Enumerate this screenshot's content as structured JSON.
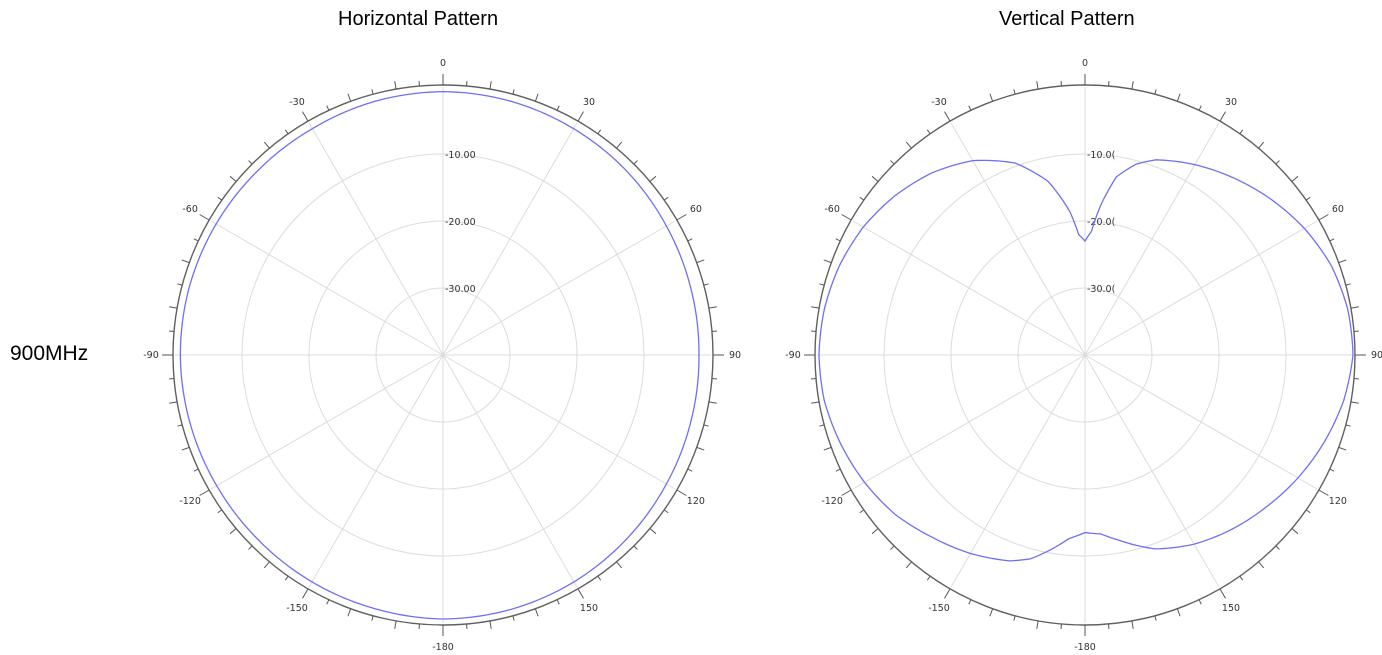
{
  "frequency_label": "900MHz",
  "chart_data": [
    {
      "type": "polar-line",
      "title": "Horizontal Pattern",
      "angle_ticks": [
        {
          "angle": 0,
          "label": "0"
        },
        {
          "angle": 30,
          "label": "30"
        },
        {
          "angle": 60,
          "label": "60"
        },
        {
          "angle": 90,
          "label": "90"
        },
        {
          "angle": 120,
          "label": "120"
        },
        {
          "angle": 150,
          "label": "150"
        },
        {
          "angle": 180,
          "label": "-180"
        },
        {
          "angle": -150,
          "label": "-150"
        },
        {
          "angle": -120,
          "label": "-120"
        },
        {
          "angle": -90,
          "label": "-90"
        },
        {
          "angle": -60,
          "label": "-60"
        },
        {
          "angle": -30,
          "label": "-30"
        }
      ],
      "radial_ticks": [
        {
          "value": -10,
          "label": "-10.00"
        },
        {
          "value": -20,
          "label": "-20.00"
        },
        {
          "value": -30,
          "label": "-30.00"
        }
      ],
      "rlim": [
        -40,
        0
      ],
      "grid": true,
      "color": "#6f6ff5",
      "series": [
        {
          "angles": [
            -180,
            -165,
            -150,
            -135,
            -120,
            -105,
            -90,
            -75,
            -60,
            -45,
            -30,
            -15,
            0,
            15,
            30,
            45,
            60,
            75,
            90,
            105,
            120,
            135,
            150,
            165,
            180
          ],
          "values": [
            -0.6,
            -0.8,
            -0.9,
            -1.0,
            -1.0,
            -0.9,
            -0.8,
            -0.8,
            -0.9,
            -1.0,
            -1.0,
            -0.8,
            -0.7,
            -0.8,
            -1.0,
            -1.2,
            -1.5,
            -1.7,
            -1.8,
            -1.7,
            -1.5,
            -1.2,
            -0.9,
            -0.7,
            -0.6
          ]
        }
      ]
    },
    {
      "type": "polar-line",
      "title": "Vertical Pattern",
      "angle_ticks": [
        {
          "angle": 0,
          "label": "0"
        },
        {
          "angle": 30,
          "label": "30"
        },
        {
          "angle": 60,
          "label": "60"
        },
        {
          "angle": 90,
          "label": "90"
        },
        {
          "angle": 120,
          "label": "120"
        },
        {
          "angle": 150,
          "label": "150"
        },
        {
          "angle": 180,
          "label": "-180"
        },
        {
          "angle": -150,
          "label": "-150"
        },
        {
          "angle": -120,
          "label": "-120"
        },
        {
          "angle": -90,
          "label": "-90"
        },
        {
          "angle": -60,
          "label": "-60"
        },
        {
          "angle": -30,
          "label": "-30"
        }
      ],
      "radial_ticks": [
        {
          "value": -10,
          "label": "-10.0("
        },
        {
          "value": -20,
          "label": "-20.0("
        },
        {
          "value": -30,
          "label": "-30.0("
        }
      ],
      "rlim": [
        -40,
        0
      ],
      "grid": true,
      "color": "#6f6ff5",
      "series": [
        {
          "angles": [
            -180,
            -175,
            -170,
            -165,
            -160,
            -150,
            -140,
            -130,
            -120,
            -110,
            -100,
            -90,
            -80,
            -70,
            -60,
            -50,
            -40,
            -30,
            -20,
            -12,
            -6,
            -3,
            0,
            3,
            6,
            10,
            15,
            20,
            30,
            40,
            50,
            60,
            70,
            80,
            90,
            100,
            110,
            120,
            130,
            140,
            150,
            160,
            170,
            175,
            180
          ],
          "values": [
            -13.5,
            -12.5,
            -10.5,
            -8.5,
            -7.3,
            -5.8,
            -4.5,
            -3.0,
            -2.0,
            -1.2,
            -0.5,
            -0.3,
            -0.5,
            -1.0,
            -1.8,
            -3.0,
            -4.5,
            -6.5,
            -9.5,
            -13.5,
            -18.5,
            -22.0,
            -23.0,
            -21.5,
            -17.5,
            -13.0,
            -10.5,
            -9.0,
            -7.2,
            -5.5,
            -3.8,
            -2.2,
            -0.9,
            -0.2,
            0.0,
            -0.8,
            -2.0,
            -3.3,
            -4.7,
            -6.0,
            -7.4,
            -9.2,
            -12.0,
            -13.2,
            -13.5
          ]
        }
      ]
    }
  ]
}
